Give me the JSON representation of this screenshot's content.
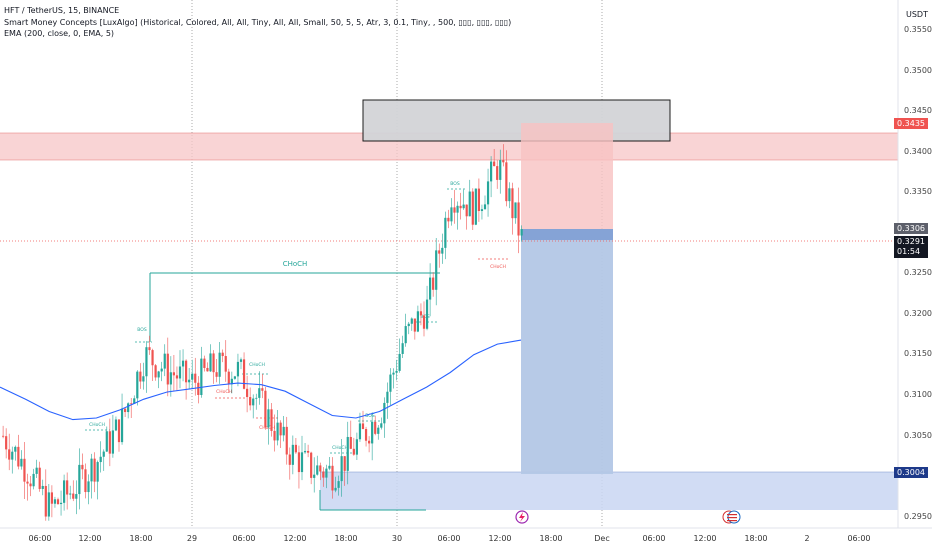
{
  "legend": {
    "line1": "HFT / TetherUS, 15, BINANCE",
    "line2": "Smart Money Concepts [LuxAlgo] (Historical, Colored, All, All, Tiny, All, All, Small, 50, 5, 5, Atr, 3, 0.1, Tiny, , 500, ▯▯▯, ▯▯▯, ▯▯▯)",
    "line3": "EMA (200, close, 0, EMA, 5)"
  },
  "currency": "USDT",
  "price_axis_labels": [
    "0.3550",
    "0.3500",
    "0.3450",
    "0.3400",
    "0.3350",
    "0.3250",
    "0.3200",
    "0.3150",
    "0.3100",
    "0.3050",
    "0.2950"
  ],
  "price_badges": {
    "red": "0.3435",
    "gray": "0.3306",
    "current": "0.3291",
    "countdown": "01:54",
    "blue": "0.3004"
  },
  "time_axis_labels": [
    "06:00",
    "12:00",
    "18:00",
    "29",
    "06:00",
    "12:00",
    "18:00",
    "30",
    "06:00",
    "12:00",
    "18:00",
    "Dec",
    "06:00",
    "12:00",
    "18:00",
    "2",
    "06:00"
  ],
  "annotations": {
    "choch_main": "CHoCH",
    "bos": "BOS",
    "choch_small": "CHoCH"
  },
  "colors": {
    "up": "#26a69a",
    "down": "#ef5350",
    "ema": "#2962ff",
    "supply_zone": "#f7c6c7",
    "demand_zone": "#c9d6f2",
    "short_target": "#b3c7e6",
    "short_stop": "#f8c2c2"
  },
  "chart_data": {
    "type": "candlestick",
    "symbol": "HFT / TetherUS",
    "timeframe": "15",
    "exchange": "BINANCE",
    "indicators": [
      "Smart Money Concepts [LuxAlgo]",
      "EMA (200, close, 0, EMA, 5)"
    ],
    "current_price": 0.3291,
    "ylim": [
      0.2935,
      0.3565
    ],
    "x": [
      "00:00",
      "03:00",
      "06:00",
      "09:00",
      "12:00",
      "15:00",
      "18:00",
      "21:00",
      "29",
      "03:00",
      "06:00",
      "09:00",
      "12:00",
      "15:00",
      "18:00",
      "21:00",
      "30",
      "03:00",
      "06:00",
      "09:00",
      "12:00",
      "15:00",
      "16:00"
    ],
    "close": [
      0.305,
      0.301,
      0.296,
      0.2985,
      0.302,
      0.3065,
      0.315,
      0.313,
      0.3115,
      0.3135,
      0.313,
      0.3085,
      0.3035,
      0.301,
      0.3005,
      0.304,
      0.308,
      0.317,
      0.321,
      0.335,
      0.333,
      0.3385,
      0.3291
    ],
    "ema": [
      0.311,
      0.3095,
      0.308,
      0.307,
      0.3072,
      0.3082,
      0.3095,
      0.3104,
      0.3108,
      0.3112,
      0.3115,
      0.3113,
      0.3105,
      0.309,
      0.3075,
      0.3072,
      0.308,
      0.3095,
      0.311,
      0.3128,
      0.315,
      0.3163,
      0.3168
    ],
    "zones": [
      {
        "type": "supply",
        "from": 0.339,
        "to": 0.3425
      },
      {
        "type": "demand",
        "from": 0.296,
        "to": 0.3004
      },
      {
        "type": "box",
        "from": 0.3415,
        "to": 0.3465
      }
    ],
    "position": {
      "type": "short",
      "entry": 0.3306,
      "stop": 0.3435,
      "target": 0.3004
    }
  }
}
